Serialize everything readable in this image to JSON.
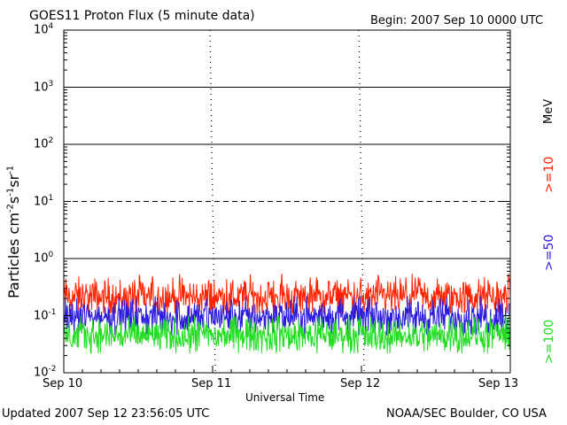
{
  "header": {
    "title": "GOES11 Proton Flux (5 minute data)",
    "begin": "Begin: 2007 Sep 10 0000 UTC"
  },
  "footer": {
    "updated": "Updated 2007 Sep 12 23:56:05 UTC",
    "credit": "NOAA/SEC Boulder, CO USA"
  },
  "chart_data": {
    "type": "line",
    "title": "GOES11 Proton Flux (5 minute data)",
    "xlabel": "Universal Time",
    "ylabel_base": "Particles cm",
    "ylabel_parts": [
      {
        "sup": "-2"
      },
      {
        "text": "s"
      },
      {
        "sup": "-1"
      },
      {
        "text": "sr"
      },
      {
        "sup": "-1"
      }
    ],
    "yscale": "log",
    "ylim": [
      0.01,
      10000
    ],
    "xlim": [
      0,
      3
    ],
    "x_units": "days since 2007 Sep 10 0000 UTC",
    "x_ticks": [
      {
        "x": 0,
        "label": "Sep 10"
      },
      {
        "x": 1,
        "label": "Sep 11"
      },
      {
        "x": 2,
        "label": "Sep 12"
      },
      {
        "x": 3,
        "label": "Sep 13"
      }
    ],
    "y_ticks": [
      {
        "value": 0.01,
        "base": "10",
        "exp": "-2"
      },
      {
        "value": 0.1,
        "base": "10",
        "exp": "-1"
      },
      {
        "value": 1,
        "base": "10",
        "exp": "0"
      },
      {
        "value": 10,
        "base": "10",
        "exp": "1"
      },
      {
        "value": 100,
        "base": "10",
        "exp": "2"
      },
      {
        "value": 1000,
        "base": "10",
        "exp": "3"
      },
      {
        "value": 10000,
        "base": "10",
        "exp": "4"
      }
    ],
    "hlines": [
      {
        "value": 1,
        "style": "solid"
      },
      {
        "value": 10,
        "style": "dashed"
      },
      {
        "value": 100,
        "style": "solid"
      },
      {
        "value": 1000,
        "style": "solid"
      }
    ],
    "energy_unit": "MeV",
    "series": [
      {
        "name": ">=10",
        "color": "#ff2200",
        "median": 0.21,
        "min": 0.11,
        "max": 0.55
      },
      {
        "name": ">=50",
        "color": "#2a1adc",
        "median": 0.095,
        "min": 0.045,
        "max": 0.22
      },
      {
        "name": ">=100",
        "color": "#22dd22",
        "median": 0.045,
        "min": 0.022,
        "max": 0.1
      }
    ]
  }
}
